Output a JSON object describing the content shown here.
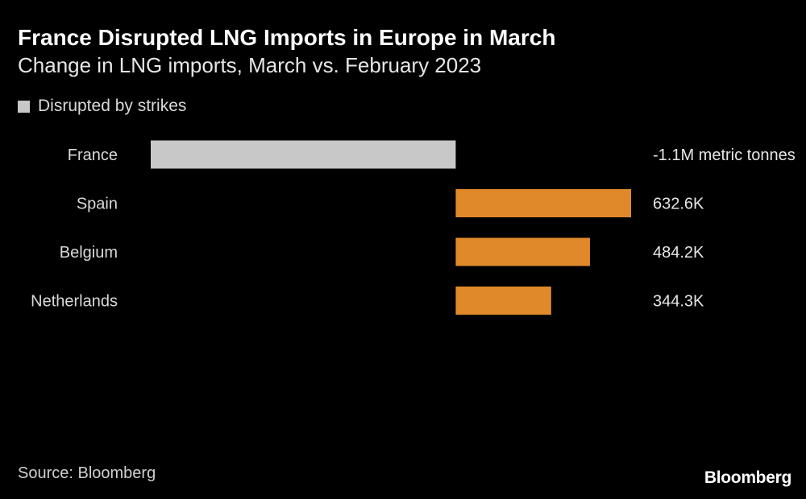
{
  "chart_data": {
    "type": "bar",
    "orientation": "horizontal",
    "title": "France Disrupted LNG Imports in Europe in March",
    "subtitle": "Change in LNG imports, March vs. February 2023",
    "legend": [
      {
        "label": "Disrupted by strikes",
        "color": "#c8c8c8"
      }
    ],
    "categories": [
      "France",
      "Spain",
      "Belgium",
      "Netherlands"
    ],
    "values": [
      -1100000,
      632600,
      484200,
      344300
    ],
    "value_labels": [
      "-1.1M metric tonnes",
      "632.6K",
      "484.2K",
      "344.3K"
    ],
    "colors": [
      "#c8c8c8",
      "#e0892a",
      "#e0892a",
      "#e0892a"
    ],
    "xlim": [
      -1100000,
      632600
    ],
    "xlabel": "",
    "ylabel": "",
    "grid": false,
    "legend_position": "top-left"
  },
  "source": "Source: Bloomberg",
  "logo_text": "Bloomberg"
}
